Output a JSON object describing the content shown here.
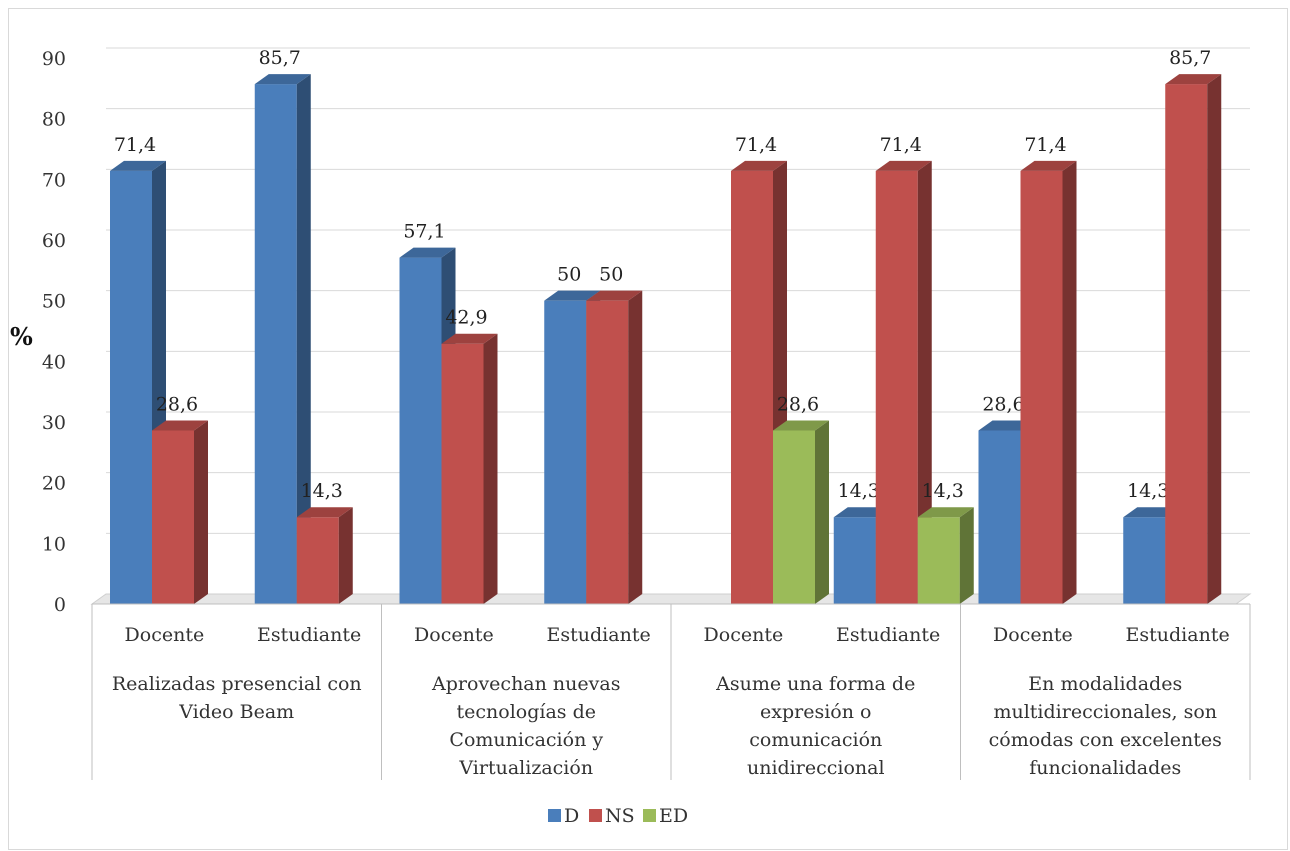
{
  "chart_data": {
    "type": "bar",
    "ylabel": "%",
    "ylim": [
      0,
      90
    ],
    "yticks": [
      "0",
      "10",
      "20",
      "30",
      "40",
      "50",
      "60",
      "70",
      "80",
      "90"
    ],
    "groups": [
      {
        "label": "Realizadas presencial con Video Beam",
        "label_lines": [
          "Realizadas presencial con",
          "Video Beam"
        ],
        "subcategories": [
          {
            "label": "Docente",
            "values": {
              "D": 71.4,
              "NS": 28.6
            },
            "labels": {
              "D": "71,4",
              "NS": "28,6"
            }
          },
          {
            "label": "Estudiante",
            "values": {
              "D": 85.7,
              "NS": 14.3
            },
            "labels": {
              "D": "85,7",
              "NS": "14,3"
            }
          }
        ]
      },
      {
        "label": "Aprovechan nuevas tecnologías de Comunicación y Virtualización",
        "label_lines": [
          "Aprovechan nuevas",
          "tecnologías de",
          "Comunicación y",
          "Virtualización"
        ],
        "subcategories": [
          {
            "label": "Docente",
            "values": {
              "D": 57.1,
              "NS": 42.9
            },
            "labels": {
              "D": "57,1",
              "NS": "42,9"
            }
          },
          {
            "label": "Estudiante",
            "values": {
              "D": 50,
              "NS": 50
            },
            "labels": {
              "D": "50",
              "NS": "50"
            }
          }
        ]
      },
      {
        "label": "Asume una forma de expresión o comunicación unidireccional",
        "label_lines": [
          "Asume una forma de",
          "expresión o",
          "comunicación",
          "unidireccional"
        ],
        "subcategories": [
          {
            "label": "Docente",
            "values": {
              "NS": 71.4,
              "ED": 28.6
            },
            "labels": {
              "NS": "71,4",
              "ED": "28,6"
            }
          },
          {
            "label": "Estudiante",
            "values": {
              "D": 14.3,
              "NS": 71.4,
              "ED": 14.3
            },
            "labels": {
              "D": "14,3",
              "NS": "71,4",
              "ED": "14,3"
            }
          }
        ]
      },
      {
        "label": "En modalidades multidireccionales, son cómodas con excelentes funcionalidades",
        "label_lines": [
          "En modalidades",
          "multidireccionales, son",
          "cómodas con excelentes",
          "funcionalidades"
        ],
        "subcategories": [
          {
            "label": "Docente",
            "values": {
              "D": 28.6,
              "NS": 71.4
            },
            "labels": {
              "D": "28,6",
              "NS": "71,4"
            }
          },
          {
            "label": "Estudiante",
            "values": {
              "D": 14.3,
              "NS": 85.7
            },
            "labels": {
              "D": "14,3",
              "NS": "85,7"
            }
          }
        ]
      }
    ],
    "series": [
      {
        "name": "D",
        "color": "#4a7ebb"
      },
      {
        "name": "NS",
        "color": "#c0504d"
      },
      {
        "name": "ED",
        "color": "#9bbb59"
      }
    ],
    "legend_position": "bottom",
    "grid": true
  }
}
